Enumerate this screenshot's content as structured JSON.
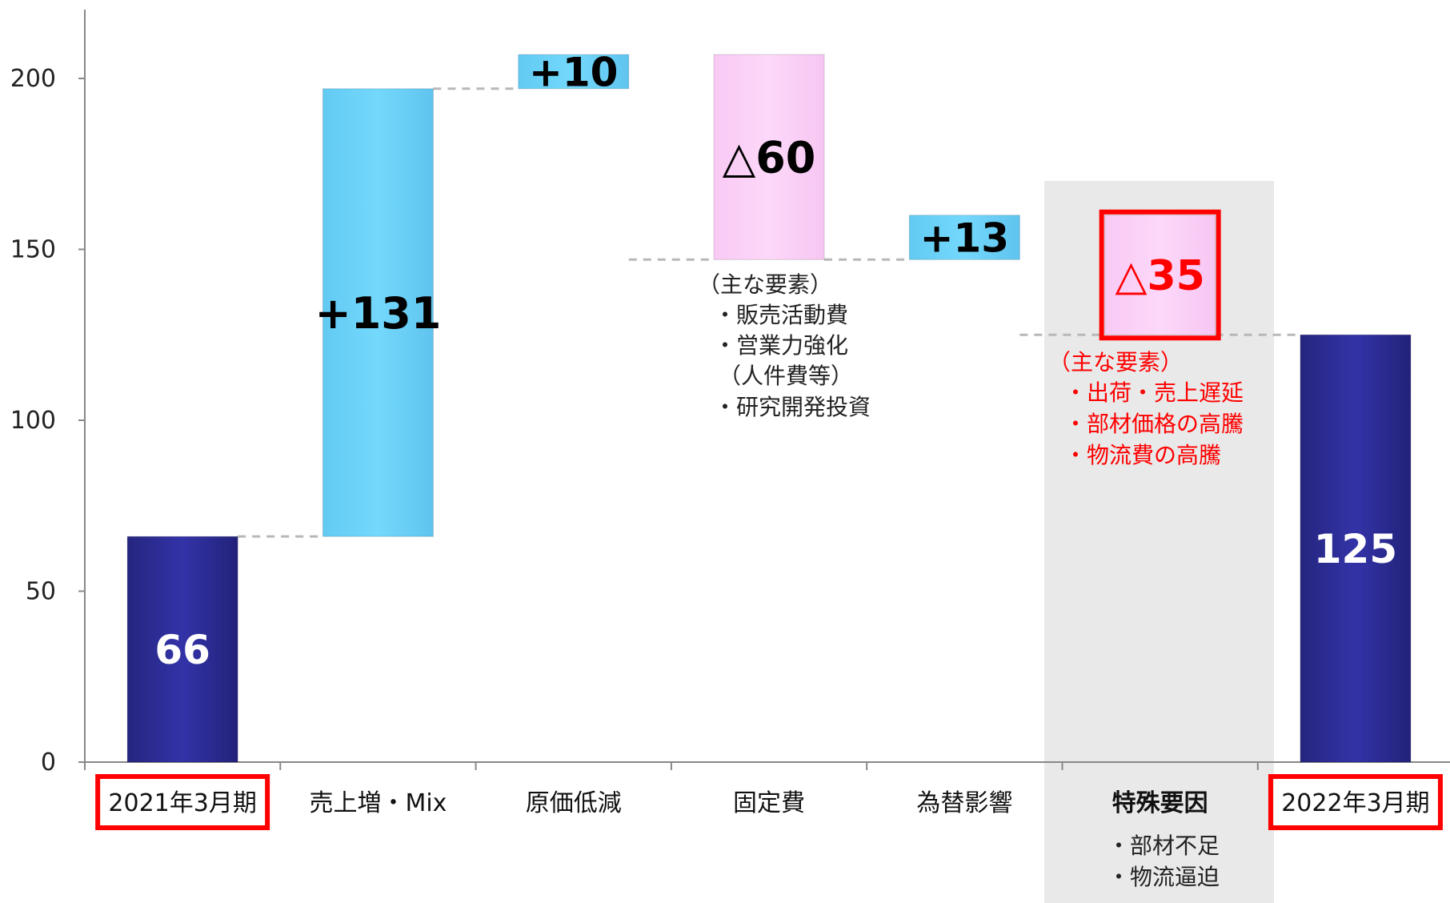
{
  "chart_data": {
    "type": "bar",
    "subtype": "waterfall",
    "categories": [
      "2021年3月期",
      "売上増・Mix",
      "原価低減",
      "固定費",
      "為替影響",
      "特殊要因",
      "2022年3月期"
    ],
    "start": [
      0,
      66,
      197,
      147,
      147,
      125,
      0
    ],
    "end": [
      66,
      197,
      207,
      207,
      160,
      160,
      125
    ],
    "labels": [
      "66",
      "+131",
      "+10",
      "△60",
      "+13",
      "△35",
      "125"
    ],
    "kinds": [
      "total",
      "increase",
      "increase",
      "decrease",
      "increase",
      "decrease-special",
      "total"
    ],
    "yticks": [
      "0",
      "50",
      "100",
      "150",
      "200"
    ],
    "ylim": [
      0,
      200
    ],
    "highlighted_categories": [
      0,
      5,
      6
    ],
    "colors": {
      "total": "#2b2c9c",
      "increase": "#6ed5fa",
      "decrease": "#fcd3f9",
      "highlight": "#ff0000",
      "band": "#e9e9e9"
    },
    "annotations": {
      "fixed_cost": [
        "（主な要素）",
        "・販売活動費",
        "・営業力強化",
        "（人件費等）",
        "・研究開発投資"
      ],
      "special": [
        "（主な要素）",
        "・出荷・売上遅延",
        "・部材価格の高騰",
        "・物流費の高騰"
      ],
      "special_sub": [
        "・部材不足",
        "・物流逼迫"
      ]
    }
  }
}
